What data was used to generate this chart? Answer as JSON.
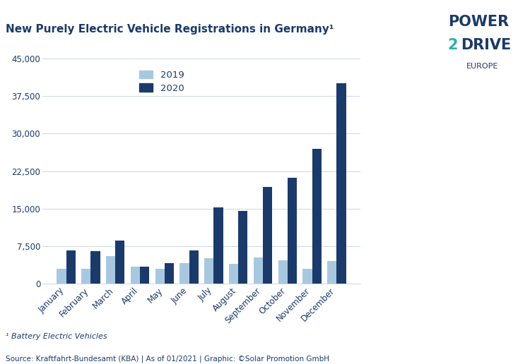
{
  "title": "New Purely Electric Vehicle Registrations in Germany¹",
  "months": [
    "January",
    "February",
    "March",
    "April",
    "May",
    "June",
    "July",
    "August",
    "September",
    "October",
    "November",
    "December"
  ],
  "values_2019": [
    3000,
    3000,
    5500,
    3500,
    3000,
    4200,
    5200,
    4000,
    5300,
    4700,
    3000,
    4500
  ],
  "values_2020": [
    6700,
    6500,
    8600,
    3500,
    4200,
    6700,
    15300,
    14600,
    19400,
    21100,
    27000,
    40000
  ],
  "color_2019": "#a8c8e0",
  "color_2020": "#1a3a6b",
  "ylim": [
    0,
    45000
  ],
  "yticks": [
    0,
    7500,
    15000,
    22500,
    30000,
    37500,
    45000
  ],
  "footnote1": "¹ Battery Electric Vehicles",
  "source": "Source: Kraftfahrt-Bundesamt (KBA) | As of 01/2021 | Graphic: ©Solar Promotion GmbH",
  "legend_2019": "2019",
  "legend_2020": "2020",
  "background_color": "#ffffff",
  "grid_color": "#c8d8e8",
  "title_color": "#1a3a6b",
  "tick_color": "#1a3a6b",
  "bar_width": 0.38,
  "logo_power_color": "#1a3a6b",
  "logo_drive_color": "#1a3a6b",
  "logo_2_color": "#2ab0b0",
  "logo_europe_color": "#1a3a6b"
}
